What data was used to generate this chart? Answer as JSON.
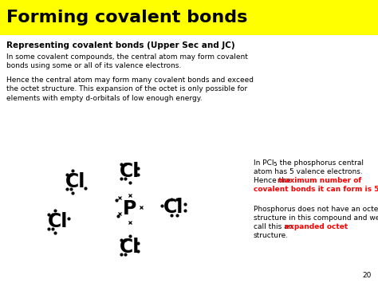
{
  "title": "Forming covalent bonds",
  "title_bg": "#FFFF00",
  "bg_color": "#FFFFFF",
  "subtitle": "Representing covalent bonds (Upper Sec and JC)",
  "para1": "In some covalent compounds, the central atom may form covalent\nbonds using some or all of its valence electrons.",
  "para2": "Hence the central atom may form many covalent bonds and exceed\nthe octet structure. This expansion of the octet is only possible for\nelements with empty d-orbitals of low enough energy.",
  "page_num": "20",
  "fig_w": 4.74,
  "fig_h": 3.55,
  "dpi": 100
}
